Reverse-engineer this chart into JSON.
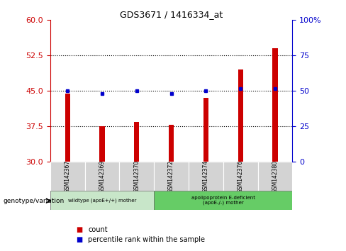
{
  "title": "GDS3671 / 1416334_at",
  "categories": [
    "GSM142367",
    "GSM142369",
    "GSM142370",
    "GSM142372",
    "GSM142374",
    "GSM142376",
    "GSM142380"
  ],
  "bar_values": [
    44.5,
    37.5,
    38.5,
    37.8,
    43.5,
    49.5,
    54.0
  ],
  "bar_base": 30,
  "blue_dot_values": [
    45.0,
    44.5,
    45.0,
    44.5,
    45.0,
    45.5,
    45.5
  ],
  "ylim_left": [
    30,
    60
  ],
  "ylim_right": [
    0,
    100
  ],
  "left_yticks": [
    30,
    37.5,
    45,
    52.5,
    60
  ],
  "right_yticks": [
    0,
    25,
    50,
    75,
    100
  ],
  "bar_color": "#cc0000",
  "dot_color": "#0000cc",
  "group1_label": "wildtype (apoE+/+) mother",
  "group2_label": "apolipoprotein E-deficient\n(apoE-/-) mother",
  "group1_indices": [
    0,
    1,
    2
  ],
  "group2_indices": [
    3,
    4,
    5,
    6
  ],
  "group1_color": "#c8e6c9",
  "group2_color": "#66cc66",
  "legend_count_label": "count",
  "legend_percentile_label": "percentile rank within the sample",
  "genotype_label": "genotype/variation",
  "bg_color": "#ffffff",
  "axis_color_left": "#cc0000",
  "axis_color_right": "#0000cc"
}
